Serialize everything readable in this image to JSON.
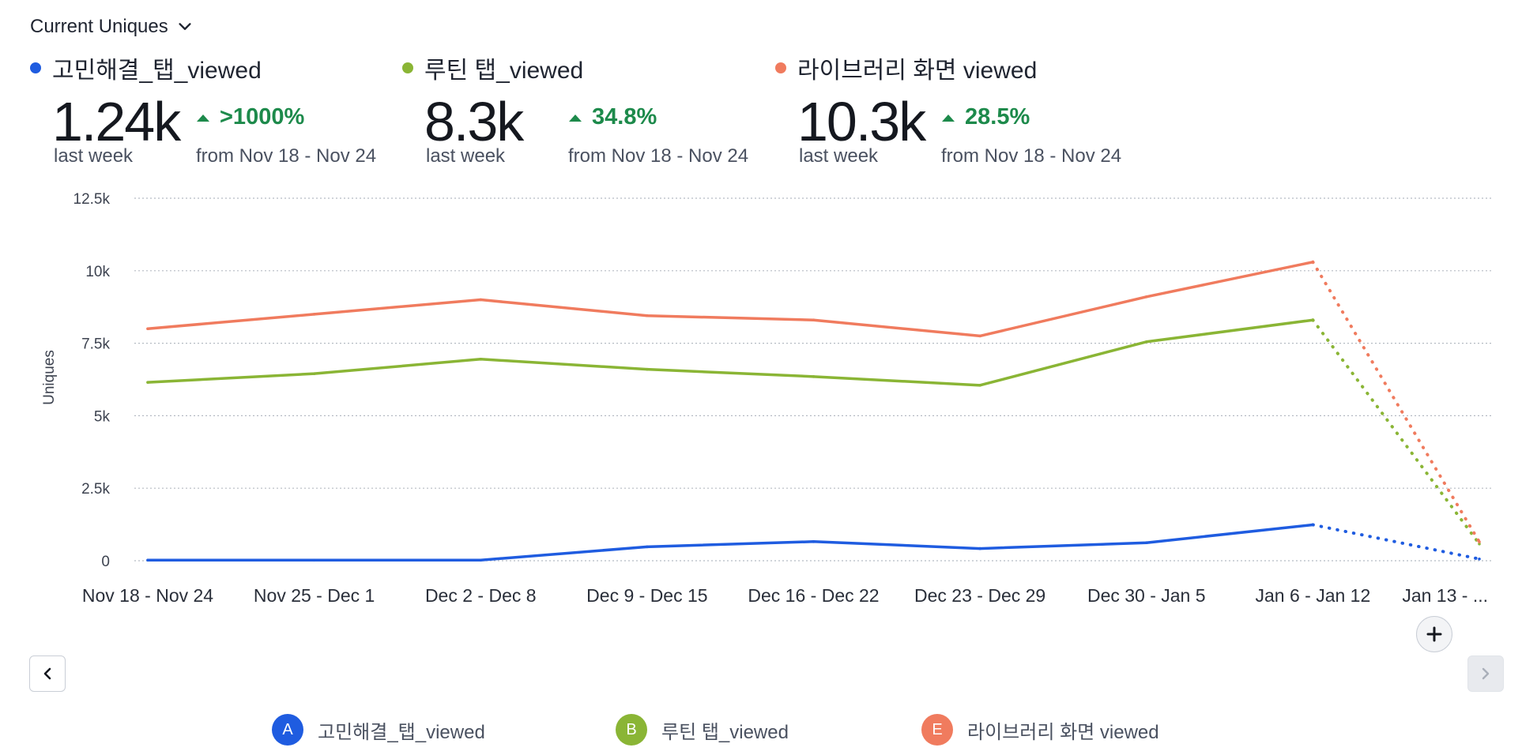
{
  "metric_selector": {
    "label": "Current Uniques",
    "icon": "chevron-down-icon"
  },
  "summaries": [
    {
      "name": "고민해결_탭_viewed",
      "color": "#1f5ce0",
      "value": "1.24k",
      "period": "last week",
      "change": ">1000%",
      "compare": "from Nov 18 - Nov 24"
    },
    {
      "name": "루틴 탭_viewed",
      "color": "#8ab535",
      "value": "8.3k",
      "period": "last week",
      "change": "34.8%",
      "compare": "from Nov 18 - Nov 24"
    },
    {
      "name": "라이브러리 화면 viewed",
      "color": "#f07b5e",
      "value": "10.3k",
      "period": "last week",
      "change": "28.5%",
      "compare": "from Nov 18 - Nov 24"
    }
  ],
  "legend": [
    {
      "badge": "A",
      "label": "고민해결_탭_viewed",
      "color": "#1f5ce0"
    },
    {
      "badge": "B",
      "label": "루틴 탭_viewed",
      "color": "#8ab535"
    },
    {
      "badge": "E",
      "label": "라이브러리 화면 viewed",
      "color": "#f07b5e"
    }
  ],
  "chart_data": {
    "type": "line",
    "ylabel": "Uniques",
    "ylim": [
      0,
      12500
    ],
    "yticks": [
      0,
      2500,
      5000,
      7500,
      10000,
      12500
    ],
    "ytick_labels": [
      "0",
      "2.5k",
      "5k",
      "7.5k",
      "10k",
      "12.5k"
    ],
    "grid": true,
    "categories": [
      "Nov 18 - Nov 24",
      "Nov 25 - Dec 1",
      "Dec 2 - Dec 8",
      "Dec 9 - Dec 15",
      "Dec 16 - Dec 22",
      "Dec 23 - Dec 29",
      "Dec 30 - Jan 5",
      "Jan 6 - Jan 12",
      "Jan 13 - ..."
    ],
    "incomplete_from_index": 7,
    "series": [
      {
        "name": "고민해결_탭_viewed",
        "color": "#1f5ce0",
        "values": [
          20,
          20,
          20,
          480,
          660,
          420,
          620,
          1240,
          60
        ]
      },
      {
        "name": "루틴 탭_viewed",
        "color": "#8ab535",
        "values": [
          6150,
          6450,
          6950,
          6600,
          6350,
          6050,
          7550,
          8300,
          580
        ]
      },
      {
        "name": "라이브러리 화면 viewed",
        "color": "#f07b5e",
        "values": [
          8000,
          8500,
          9000,
          8450,
          8300,
          7750,
          9100,
          10300,
          650
        ]
      }
    ]
  }
}
